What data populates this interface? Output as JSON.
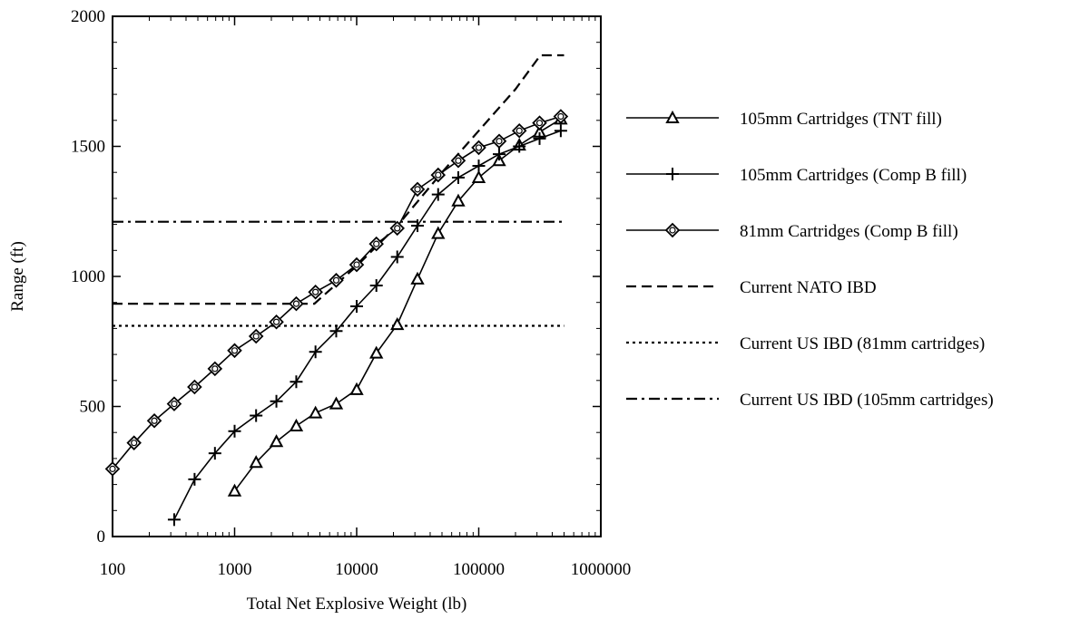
{
  "chart_data": {
    "type": "line",
    "xlabel": "Total Net Explosive Weight (lb)",
    "ylabel": "Range (ft)",
    "x_scale": "log",
    "xlim": [
      100,
      1000000
    ],
    "ylim": [
      0,
      2000
    ],
    "x_ticks": [
      "100",
      "1000",
      "10000",
      "100000",
      "1000000"
    ],
    "y_ticks": [
      "0",
      "500",
      "1000",
      "1500",
      "2000"
    ],
    "grid": false,
    "legend_position": "right",
    "series": [
      {
        "name": "105mm Cartridges (TNT fill)",
        "marker": "triangle",
        "style": "solid",
        "x": [
          1000,
          1500,
          2200,
          3200,
          4600,
          6800,
          10000,
          14500,
          21500,
          31500,
          46500,
          68000,
          100000,
          147000,
          215000,
          315000,
          470000
        ],
        "y": [
          175,
          285,
          365,
          425,
          475,
          510,
          565,
          705,
          815,
          990,
          1165,
          1290,
          1380,
          1445,
          1505,
          1555,
          1605
        ]
      },
      {
        "name": "105mm Cartridges (Comp B fill)",
        "marker": "plus",
        "style": "solid",
        "x": [
          320,
          470,
          690,
          1000,
          1500,
          2200,
          3200,
          4600,
          6800,
          10000,
          14500,
          21500,
          31500,
          46500,
          68000,
          100000,
          147000,
          215000,
          315000,
          470000
        ],
        "y": [
          65,
          220,
          320,
          405,
          465,
          520,
          595,
          710,
          790,
          885,
          965,
          1075,
          1195,
          1315,
          1380,
          1425,
          1470,
          1500,
          1530,
          1560
        ]
      },
      {
        "name": "81mm Cartridges (Comp B fill)",
        "marker": "diamond",
        "style": "solid",
        "x": [
          100,
          150,
          220,
          320,
          470,
          690,
          1000,
          1500,
          2200,
          3200,
          4600,
          6800,
          10000,
          14500,
          21500,
          31500,
          46500,
          68000,
          100000,
          147000,
          215000,
          315000,
          470000
        ],
        "y": [
          260,
          360,
          445,
          510,
          575,
          645,
          715,
          770,
          825,
          895,
          940,
          985,
          1045,
          1125,
          1185,
          1335,
          1390,
          1445,
          1495,
          1520,
          1560,
          1590,
          1615
        ]
      },
      {
        "name": "Current NATO IBD",
        "style": "dashed",
        "x": [
          100,
          4500,
          10000,
          22000,
          50000,
          100000,
          200000,
          320000,
          500000
        ],
        "y": [
          895,
          895,
          1040,
          1200,
          1400,
          1560,
          1720,
          1850,
          1850
        ]
      },
      {
        "name": "Current US IBD (81mm cartridges)",
        "style": "dotted",
        "x": [
          100,
          500000
        ],
        "y": [
          810,
          810
        ]
      },
      {
        "name": "Current US IBD (105mm cartridges)",
        "style": "dashdot",
        "x": [
          100,
          500000
        ],
        "y": [
          1210,
          1210
        ]
      }
    ]
  }
}
